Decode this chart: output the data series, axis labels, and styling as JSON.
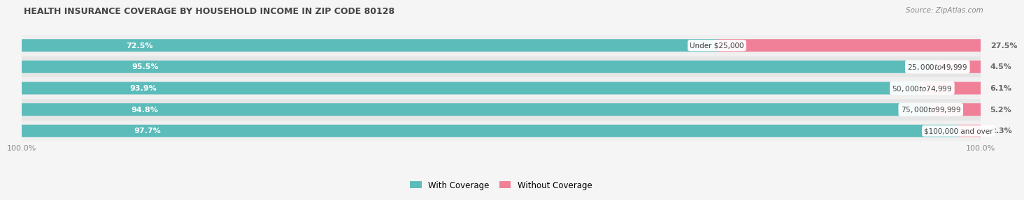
{
  "title": "HEALTH INSURANCE COVERAGE BY HOUSEHOLD INCOME IN ZIP CODE 80128",
  "source": "Source: ZipAtlas.com",
  "categories": [
    "Under $25,000",
    "$25,000 to $49,999",
    "$50,000 to $74,999",
    "$75,000 to $99,999",
    "$100,000 and over"
  ],
  "with_coverage": [
    72.5,
    95.5,
    93.9,
    94.8,
    97.7
  ],
  "without_coverage": [
    27.5,
    4.5,
    6.1,
    5.2,
    2.3
  ],
  "color_with": "#5bbcba",
  "color_without": "#f08098",
  "row_bg_even": "#f0f0f0",
  "row_bg_odd": "#e6e6e6",
  "bar_height": 0.58,
  "legend_label_with": "With Coverage",
  "legend_label_without": "Without Coverage",
  "bg_color": "#f5f5f5",
  "title_color": "#444444",
  "source_color": "#888888",
  "pct_label_color_left": "#ffffff",
  "pct_label_color_right": "#666666",
  "cat_label_color": "#444444"
}
